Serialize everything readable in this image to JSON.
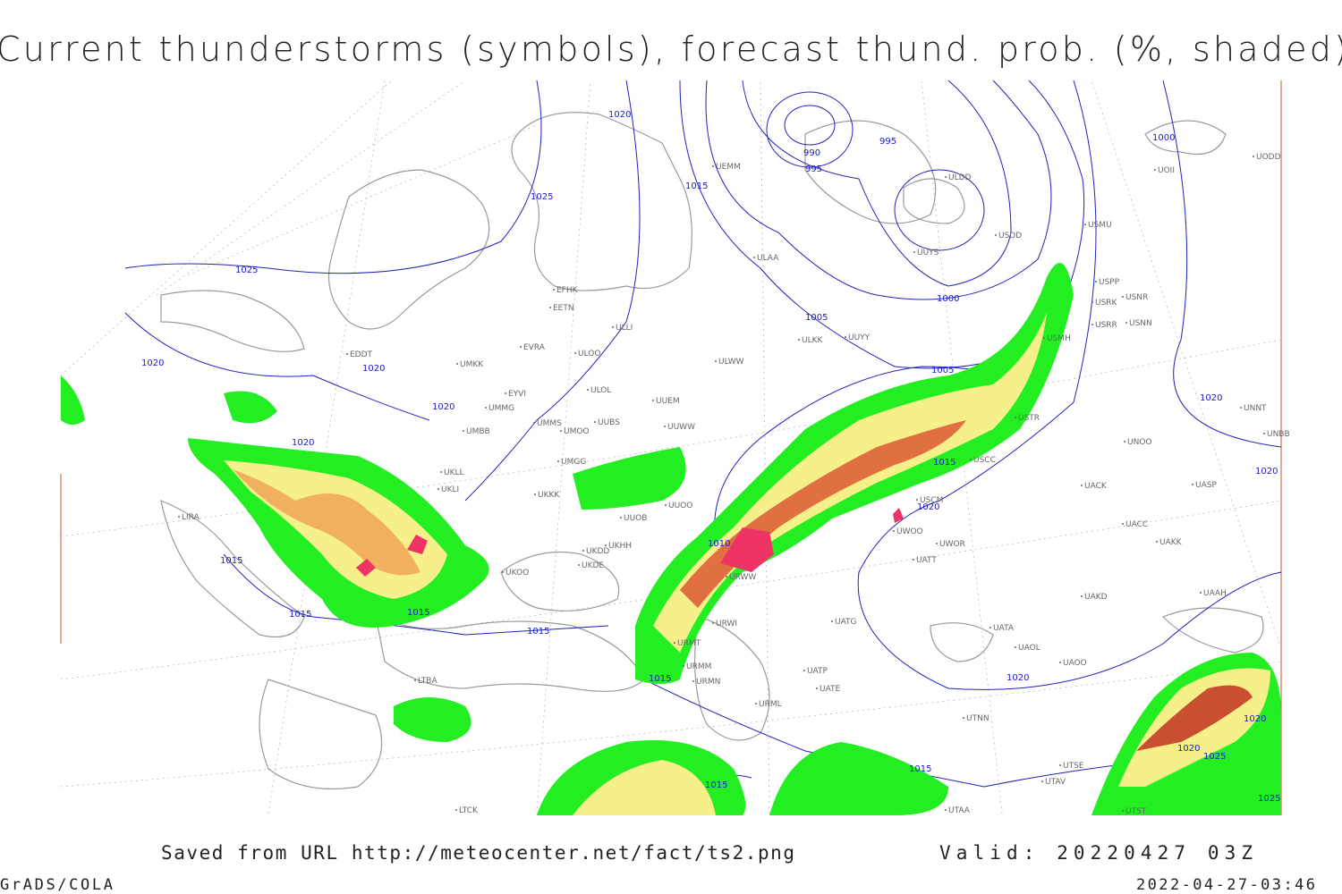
{
  "header": {
    "title": "Current thunderstorms (symbols), forecast thund. prob. (%, shaded)"
  },
  "footer": {
    "saved": "Saved from URL http://meteocenter.net/fact/ts2.png",
    "valid": "Valid: 20220427 03Z",
    "software": "GrADS/COLA",
    "timestamp": "2022-04-27-03:46"
  },
  "map": {
    "isobar_labels": [
      "1020",
      "1025",
      "1025",
      "1015",
      "990",
      "995",
      "995",
      "1000",
      "1005",
      "1020",
      "1020",
      "1020",
      "1020",
      "1005",
      "1015",
      "1020",
      "1010",
      "1015",
      "1015",
      "1015",
      "1015",
      "1015",
      "1020",
      "1020",
      "1020",
      "1020",
      "1020",
      "1025",
      "1015",
      "1015",
      "1025",
      "1000"
    ],
    "stations": [
      "UEMM",
      "ULDD",
      "USDD",
      "USMU",
      "ULAA",
      "UUYS",
      "UUYY",
      "ULKK",
      "USPP",
      "USRK",
      "USNR",
      "USRR",
      "USNN",
      "USMH",
      "EVRA",
      "ULOO",
      "UMKK",
      "ULWW",
      "EDDT",
      "EYVI",
      "ULOL",
      "UUEM",
      "UMMG",
      "UMMS",
      "UUBS",
      "UUWW",
      "UMOO",
      "UMBB",
      "UNNT",
      "UNBB",
      "UNOO",
      "UMGG",
      "UKLL",
      "UKLI",
      "UKKK",
      "UUOO",
      "UUOB",
      "UACK",
      "UASP",
      "UATT",
      "UAKD",
      "UAAH",
      "UACC",
      "UAKK",
      "LIRA",
      "UKOO",
      "UKDE",
      "UKHH",
      "UKDD",
      "URWW",
      "URWI",
      "URMT",
      "URMM",
      "URMN",
      "URML",
      "UATP",
      "UATE",
      "UATG",
      "UATA",
      "UAOL",
      "UAOO",
      "UTNN",
      "LTBA",
      "UTSE",
      "UTAV",
      "UTAA",
      "LTCK",
      "UTST",
      "UWOO",
      "UWOR",
      "USCM",
      "USCC",
      "USTR",
      "EFHK",
      "EETN",
      "ULLI",
      "UOII",
      "UODD"
    ]
  }
}
